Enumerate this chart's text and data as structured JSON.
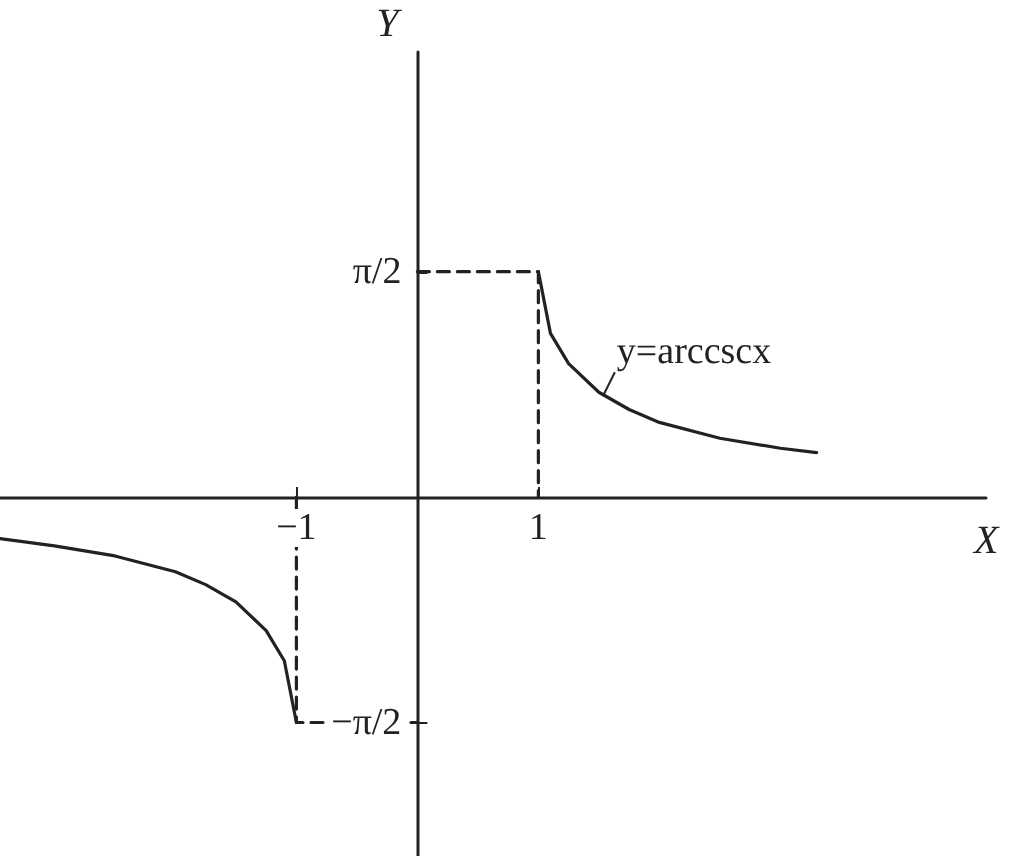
{
  "chart_data": {
    "type": "line",
    "xlabel": "X",
    "ylabel": "Y",
    "marker": "none",
    "line_style": "solid",
    "grid": false,
    "xlim": [
      -3.45,
      4.7
    ],
    "ylim": [
      -2.5,
      3.1
    ],
    "xticks": [
      {
        "value": -1,
        "label": "−1"
      },
      1
    ],
    "yticks": [
      {
        "value": 1.5708,
        "label": "π/2"
      },
      {
        "value": -1.5708,
        "label": "−π/2"
      }
    ],
    "annotations": [
      {
        "text": "y=arccscx",
        "x": 1.5,
        "y": 0.73
      }
    ],
    "series": [
      {
        "color": "#222222",
        "x": [
          1,
          1.1,
          1.25,
          1.5,
          1.75,
          2,
          2.5,
          3,
          3.3
        ],
        "values": [
          1.57,
          1.14,
          0.93,
          0.73,
          0.61,
          0.52,
          0.41,
          0.34,
          0.31
        ]
      },
      {
        "color": "#222222",
        "x": [
          -3.45,
          -3,
          -2.5,
          -2,
          -1.75,
          -1.5,
          -1.25,
          -1.1,
          -1
        ],
        "values": [
          -0.29,
          -0.34,
          -0.41,
          -0.52,
          -0.61,
          -0.73,
          -0.93,
          -1.14,
          -1.57
        ]
      },
      {
        "color": "#222222",
        "line_style": "dashed",
        "x": [
          0,
          1,
          1
        ],
        "values": [
          1.57,
          1.57,
          0
        ]
      },
      {
        "color": "#222222",
        "line_style": "dashed",
        "x": [
          -1,
          -1,
          0
        ],
        "values": [
          0,
          -1.57,
          -1.57
        ]
      }
    ]
  }
}
